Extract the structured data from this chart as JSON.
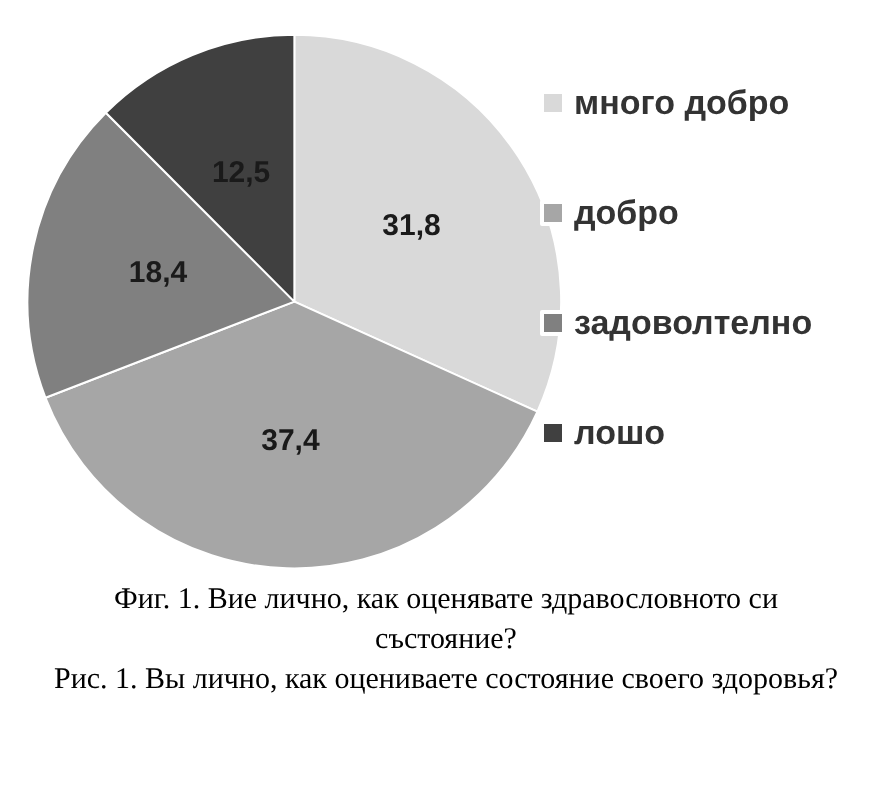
{
  "chart_data": {
    "type": "pie",
    "categories": [
      "много добро",
      "добро",
      "задоволтелно",
      "лошо"
    ],
    "values": [
      31.8,
      37.4,
      18.4,
      12.5
    ],
    "value_labels": [
      "31,8",
      "37,4",
      "18,4",
      "12,5"
    ],
    "colors": [
      "#d9d9d9",
      "#a6a6a6",
      "#808080",
      "#404040"
    ],
    "legend": "right",
    "annotations": [
      "Фиг. 1. Вие лично, как оценявате здравословното си състояние?",
      "Рис. 1. Вы лично, как оцениваете состояние своего здоровья?"
    ]
  }
}
